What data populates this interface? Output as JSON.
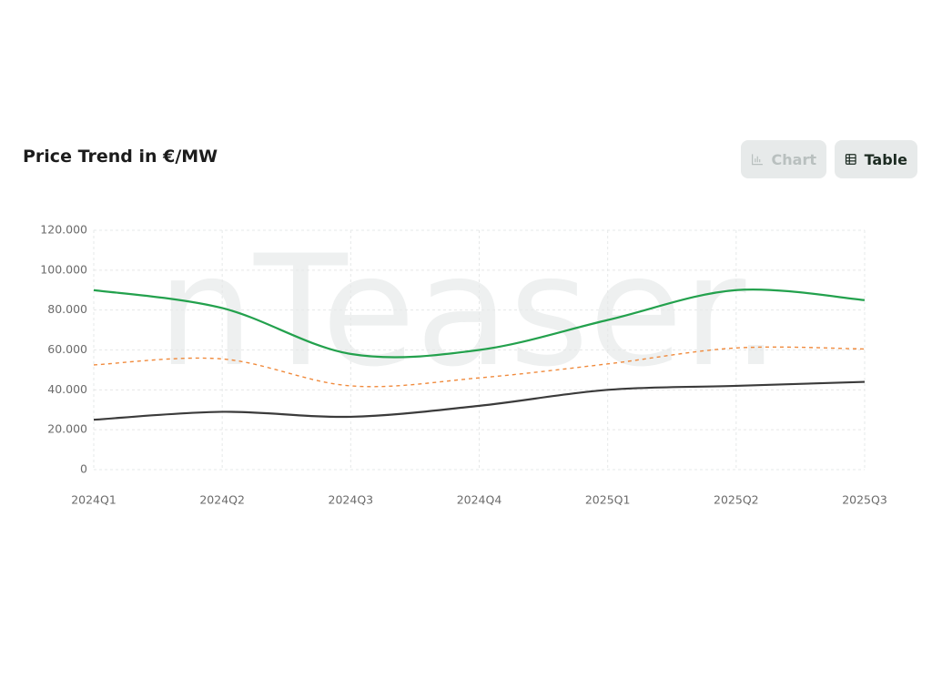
{
  "header": {
    "title": "Price Trend in €/MW"
  },
  "buttons": {
    "chart": "Chart",
    "table": "Table"
  },
  "watermark": "nTeaser.",
  "chart_data": {
    "type": "line",
    "categories": [
      "2024Q1",
      "2024Q2",
      "2024Q3",
      "2024Q4",
      "2025Q1",
      "2025Q2",
      "2025Q3"
    ],
    "series": [
      {
        "color": "#23a14d",
        "dash": "none",
        "values": [
          90000,
          81000,
          58000,
          60000,
          75000,
          90000,
          85000
        ]
      },
      {
        "color": "#f08a3c",
        "dash": "4 4",
        "values": [
          52500,
          55500,
          42000,
          46000,
          53000,
          61000,
          60500
        ]
      },
      {
        "color": "#3b3b3b",
        "dash": "none",
        "values": [
          25000,
          29000,
          26500,
          32000,
          40000,
          42000,
          44000
        ]
      }
    ],
    "ylim": [
      0,
      120000
    ],
    "yticks": [
      0,
      {
        "value": 20000,
        "label": "20.000"
      },
      {
        "value": 40000,
        "label": "40.000"
      },
      {
        "value": 60000,
        "label": "60.000"
      },
      {
        "value": 80000,
        "label": "80.000"
      },
      {
        "value": 100000,
        "label": "100.000"
      },
      {
        "value": 120000,
        "label": "120.000"
      }
    ],
    "grid": true
  }
}
